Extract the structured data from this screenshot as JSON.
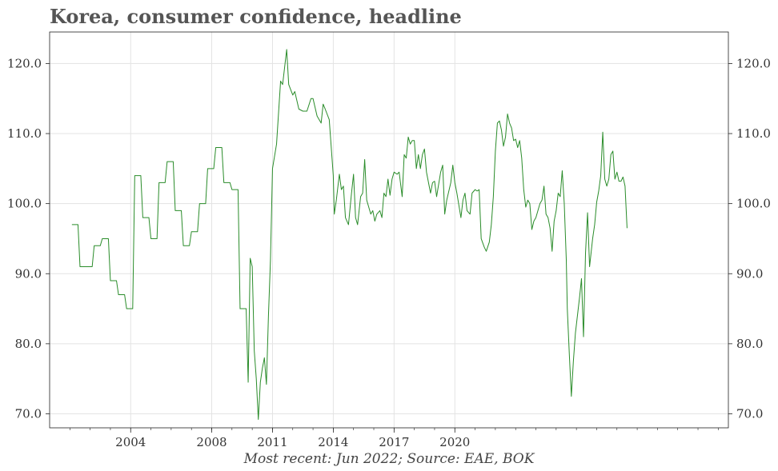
{
  "title": "Korea, consumer confidence, headline",
  "caption": "Most recent: Jun 2022; Source: EAE, BOK",
  "chart_data": {
    "type": "line",
    "title": "Korea, consumer confidence, headline",
    "xlabel": "",
    "ylabel": "",
    "xlim": [
      2000.0,
      2033.5
    ],
    "ylim": [
      68.0,
      124.5
    ],
    "x_ticks": [
      {
        "value": 2004,
        "label": "2004"
      },
      {
        "value": 2008,
        "label": "2008"
      },
      {
        "value": 2011,
        "label": "2011"
      },
      {
        "value": 2014,
        "label": "2014"
      },
      {
        "value": 2017,
        "label": "2017"
      },
      {
        "value": 2020,
        "label": "2020"
      }
    ],
    "y_ticks": [
      {
        "value": 70,
        "label": "70.0"
      },
      {
        "value": 80,
        "label": "80.0"
      },
      {
        "value": 90,
        "label": "90.0"
      },
      {
        "value": 100,
        "label": "100.0"
      },
      {
        "value": 110,
        "label": "110.0"
      },
      {
        "value": 120,
        "label": "120.0"
      }
    ],
    "grid": true,
    "line_color": "#2a8c2a",
    "series": [
      {
        "name": "",
        "points": [
          [
            2001.1,
            97.0
          ],
          [
            2001.4,
            97.0
          ],
          [
            2001.5,
            91.0
          ],
          [
            2002.1,
            91.0
          ],
          [
            2002.2,
            94.0
          ],
          [
            2002.5,
            94.0
          ],
          [
            2002.6,
            95.0
          ],
          [
            2002.9,
            95.0
          ],
          [
            2003.0,
            89.0
          ],
          [
            2003.3,
            89.0
          ],
          [
            2003.4,
            87.0
          ],
          [
            2003.7,
            87.0
          ],
          [
            2003.8,
            85.0
          ],
          [
            2004.1,
            85.0
          ],
          [
            2004.2,
            104.0
          ],
          [
            2004.5,
            104.0
          ],
          [
            2004.6,
            98.0
          ],
          [
            2004.9,
            98.0
          ],
          [
            2005.0,
            95.0
          ],
          [
            2005.3,
            95.0
          ],
          [
            2005.4,
            103.0
          ],
          [
            2005.7,
            103.0
          ],
          [
            2005.8,
            106.0
          ],
          [
            2006.1,
            106.0
          ],
          [
            2006.2,
            99.0
          ],
          [
            2006.5,
            99.0
          ],
          [
            2006.6,
            94.0
          ],
          [
            2006.9,
            94.0
          ],
          [
            2007.0,
            96.0
          ],
          [
            2007.3,
            96.0
          ],
          [
            2007.4,
            100.0
          ],
          [
            2007.7,
            100.0
          ],
          [
            2007.8,
            105.0
          ],
          [
            2008.1,
            105.0
          ],
          [
            2008.2,
            108.0
          ],
          [
            2008.5,
            108.0
          ],
          [
            2008.6,
            103.0
          ],
          [
            2008.9,
            103.0
          ],
          [
            2009.0,
            102.0
          ],
          [
            2009.3,
            102.0
          ],
          [
            2009.4,
            85.0
          ],
          [
            2009.7,
            85.0
          ],
          [
            2009.8,
            74.5
          ],
          [
            2009.9,
            92.2
          ],
          [
            2010.0,
            91.0
          ],
          [
            2010.1,
            79.0
          ],
          [
            2010.2,
            75.0
          ],
          [
            2010.3,
            69.2
          ],
          [
            2010.4,
            74.5
          ],
          [
            2010.5,
            76.5
          ],
          [
            2010.6,
            78.0
          ],
          [
            2010.7,
            74.2
          ],
          [
            2010.8,
            84.0
          ],
          [
            2010.9,
            92.0
          ],
          [
            2011.0,
            105.0
          ],
          [
            2011.2,
            108.5
          ],
          [
            2011.4,
            117.5
          ],
          [
            2011.5,
            117.0
          ],
          [
            2011.7,
            122.0
          ],
          [
            2011.8,
            117.0
          ],
          [
            2012.0,
            115.5
          ],
          [
            2012.1,
            116.0
          ],
          [
            2012.3,
            113.5
          ],
          [
            2012.5,
            113.2
          ],
          [
            2012.7,
            113.2
          ],
          [
            2012.9,
            115.0
          ],
          [
            2013.0,
            115.0
          ],
          [
            2013.2,
            112.5
          ],
          [
            2013.4,
            111.5
          ],
          [
            2013.5,
            114.2
          ],
          [
            2013.6,
            113.5
          ],
          [
            2013.8,
            112.0
          ],
          [
            2014.0,
            104.0
          ],
          [
            2014.05,
            98.5
          ],
          [
            2014.15,
            100.5
          ],
          [
            2014.3,
            104.2
          ],
          [
            2014.4,
            102.0
          ],
          [
            2014.5,
            102.5
          ],
          [
            2014.6,
            98.0
          ],
          [
            2014.75,
            97.0
          ],
          [
            2014.9,
            101.5
          ],
          [
            2015.0,
            104.2
          ],
          [
            2015.1,
            98.0
          ],
          [
            2015.2,
            97.0
          ],
          [
            2015.35,
            101.0
          ],
          [
            2015.45,
            101.5
          ],
          [
            2015.55,
            106.3
          ],
          [
            2015.65,
            100.5
          ],
          [
            2015.75,
            99.5
          ],
          [
            2015.85,
            98.5
          ],
          [
            2015.95,
            99.0
          ],
          [
            2016.05,
            97.5
          ],
          [
            2016.15,
            98.5
          ],
          [
            2016.3,
            99.0
          ],
          [
            2016.4,
            98.0
          ],
          [
            2016.5,
            101.5
          ],
          [
            2016.6,
            101.0
          ],
          [
            2016.7,
            103.5
          ],
          [
            2016.8,
            101.2
          ],
          [
            2016.9,
            103.5
          ],
          [
            2017.0,
            104.5
          ],
          [
            2017.15,
            104.2
          ],
          [
            2017.25,
            104.5
          ],
          [
            2017.4,
            101.0
          ],
          [
            2017.5,
            107.0
          ],
          [
            2017.6,
            106.5
          ],
          [
            2017.7,
            109.5
          ],
          [
            2017.8,
            108.5
          ],
          [
            2017.9,
            109.0
          ],
          [
            2018.0,
            109.0
          ],
          [
            2018.1,
            105.0
          ],
          [
            2018.2,
            107.0
          ],
          [
            2018.3,
            105.0
          ],
          [
            2018.4,
            107.0
          ],
          [
            2018.5,
            107.8
          ],
          [
            2018.6,
            104.5
          ],
          [
            2018.8,
            101.5
          ],
          [
            2018.9,
            103.0
          ],
          [
            2019.0,
            103.2
          ],
          [
            2019.1,
            101.0
          ],
          [
            2019.3,
            104.5
          ],
          [
            2019.4,
            105.5
          ],
          [
            2019.5,
            98.5
          ],
          [
            2019.6,
            100.5
          ],
          [
            2019.8,
            103.0
          ],
          [
            2019.9,
            105.5
          ],
          [
            2020.0,
            103.0
          ],
          [
            2020.1,
            101.5
          ],
          [
            2020.3,
            98.0
          ],
          [
            2020.4,
            100.5
          ],
          [
            2020.5,
            101.5
          ],
          [
            2020.6,
            99.0
          ],
          [
            2020.75,
            98.5
          ],
          [
            2020.85,
            101.5
          ],
          [
            2021.0,
            102.0
          ],
          [
            2021.1,
            101.8
          ],
          [
            2021.2,
            102.0
          ],
          [
            2021.3,
            95.0
          ],
          [
            2021.45,
            93.8
          ],
          [
            2021.55,
            93.2
          ],
          [
            2021.7,
            94.5
          ],
          [
            2021.8,
            97.0
          ],
          [
            2021.9,
            101.0
          ],
          [
            2022.0,
            107.5
          ],
          [
            2022.1,
            111.5
          ],
          [
            2022.2,
            111.8
          ],
          [
            2022.3,
            110.5
          ],
          [
            2022.4,
            108.2
          ],
          [
            2022.5,
            109.5
          ],
          [
            2022.6,
            112.8
          ],
          [
            2022.7,
            111.5
          ],
          [
            2022.8,
            110.8
          ],
          [
            2022.9,
            109.0
          ],
          [
            2023.0,
            109.2
          ],
          [
            2023.1,
            108.0
          ],
          [
            2023.2,
            109.0
          ],
          [
            2023.3,
            106.5
          ],
          [
            2023.4,
            102.0
          ],
          [
            2023.5,
            99.5
          ],
          [
            2023.6,
            100.5
          ],
          [
            2023.7,
            100.0
          ],
          [
            2023.8,
            96.3
          ],
          [
            2023.9,
            97.5
          ],
          [
            2024.0,
            98.0
          ],
          [
            2024.1,
            99.0
          ],
          [
            2024.2,
            100.0
          ],
          [
            2024.3,
            100.5
          ],
          [
            2024.4,
            102.5
          ],
          [
            2024.5,
            98.5
          ],
          [
            2024.6,
            98.0
          ],
          [
            2024.7,
            96.5
          ],
          [
            2024.8,
            93.2
          ],
          [
            2024.9,
            97.5
          ],
          [
            2025.0,
            99.0
          ],
          [
            2025.1,
            101.5
          ],
          [
            2025.2,
            101.0
          ],
          [
            2025.3,
            104.7
          ],
          [
            2025.4,
            100.0
          ],
          [
            2025.5,
            92.0
          ],
          [
            2025.55,
            85.0
          ],
          [
            2025.65,
            78.5
          ],
          [
            2025.75,
            72.5
          ],
          [
            2025.85,
            77.5
          ],
          [
            2025.95,
            81.5
          ],
          [
            2026.05,
            84.0
          ],
          [
            2026.15,
            86.5
          ],
          [
            2026.25,
            89.3
          ],
          [
            2026.35,
            81.0
          ],
          [
            2026.45,
            93.0
          ],
          [
            2026.55,
            98.7
          ],
          [
            2026.65,
            91.0
          ],
          [
            2026.8,
            95.0
          ],
          [
            2026.9,
            97.0
          ],
          [
            2027.0,
            100.2
          ],
          [
            2027.1,
            101.8
          ],
          [
            2027.2,
            104.0
          ],
          [
            2027.3,
            110.2
          ],
          [
            2027.4,
            103.5
          ],
          [
            2027.5,
            102.5
          ],
          [
            2027.6,
            103.5
          ],
          [
            2027.7,
            107.0
          ],
          [
            2027.8,
            107.5
          ],
          [
            2027.9,
            103.5
          ],
          [
            2028.0,
            104.5
          ],
          [
            2028.1,
            103.2
          ],
          [
            2028.2,
            103.2
          ],
          [
            2028.3,
            103.8
          ],
          [
            2028.4,
            102.5
          ],
          [
            2028.5,
            96.5
          ]
        ]
      }
    ]
  }
}
